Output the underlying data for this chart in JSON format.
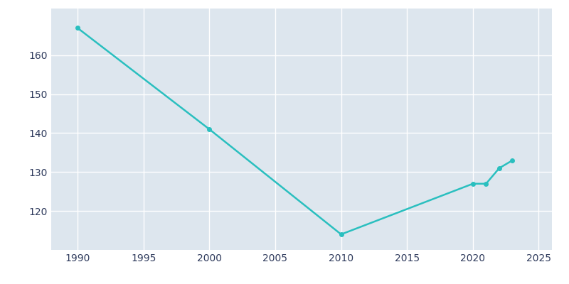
{
  "years": [
    1990,
    2000,
    2010,
    2020,
    2021,
    2022,
    2023
  ],
  "population": [
    167,
    141,
    114,
    127,
    127,
    131,
    133
  ],
  "line_color": "#2ABFBF",
  "bg_color": "#E8EEF4",
  "plot_bg_color": "#DDE6EE",
  "grid_color": "#FFFFFF",
  "xlim": [
    1988,
    2026
  ],
  "ylim": [
    110,
    172
  ],
  "xticks": [
    1990,
    1995,
    2000,
    2005,
    2010,
    2015,
    2020,
    2025
  ],
  "yticks": [
    120,
    130,
    140,
    150,
    160
  ],
  "tick_label_color": "#2E3A5C",
  "linewidth": 1.8,
  "marker": "o",
  "markersize": 4
}
